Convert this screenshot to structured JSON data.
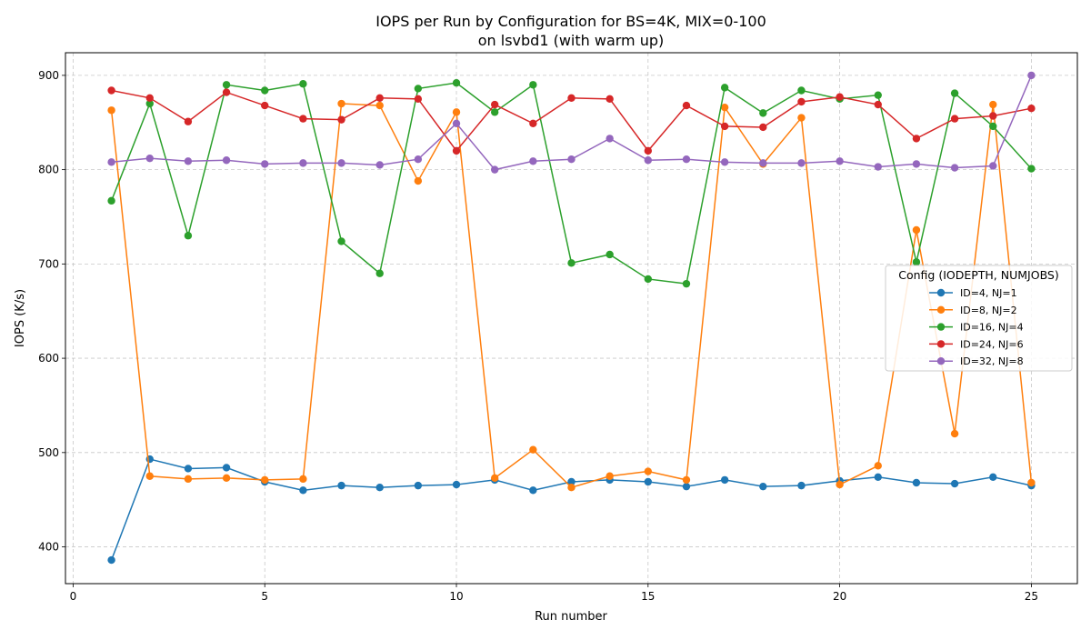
{
  "chart_data": {
    "type": "line",
    "title_line1": "IOPS per Run by Configuration for BS=4K, MIX=0-100",
    "title_line2": "on lsvbd1 (with warm up)",
    "xlabel": "Run number",
    "ylabel": "IOPS (K/s)",
    "xlim": [
      -0.2,
      26.2
    ],
    "ylim": [
      361,
      924
    ],
    "xticks": [
      0,
      5,
      10,
      15,
      20,
      25
    ],
    "yticks": [
      400,
      500,
      600,
      700,
      800,
      900
    ],
    "grid": true,
    "legend": {
      "title": "Config (IODEPTH, NUMJOBS)",
      "placement": "center-right"
    },
    "x": [
      1,
      2,
      3,
      4,
      5,
      6,
      7,
      8,
      9,
      10,
      11,
      12,
      13,
      14,
      15,
      16,
      17,
      18,
      19,
      20,
      21,
      22,
      23,
      24,
      25
    ],
    "series": [
      {
        "name": "ID=4, NJ=1",
        "color": "#1f77b4",
        "values": [
          386,
          493,
          483,
          484,
          469,
          460,
          465,
          463,
          465,
          466,
          471,
          460,
          469,
          471,
          469,
          464,
          471,
          464,
          465,
          470,
          474,
          468,
          467,
          474,
          465
        ]
      },
      {
        "name": "ID=8, NJ=2",
        "color": "#ff7f0e",
        "values": [
          863,
          475,
          472,
          473,
          471,
          472,
          870,
          868,
          788,
          861,
          473,
          503,
          463,
          475,
          480,
          471,
          866,
          806,
          855,
          466,
          486,
          736,
          520,
          869,
          468
        ]
      },
      {
        "name": "ID=16, NJ=4",
        "color": "#2ca02c",
        "values": [
          767,
          870,
          730,
          890,
          884,
          891,
          724,
          690,
          886,
          892,
          861,
          890,
          701,
          710,
          684,
          679,
          887,
          860,
          884,
          875,
          879,
          702,
          881,
          846,
          801
        ]
      },
      {
        "name": "ID=24, NJ=6",
        "color": "#d62728",
        "values": [
          884,
          876,
          851,
          882,
          868,
          854,
          853,
          876,
          875,
          820,
          869,
          849,
          876,
          875,
          820,
          868,
          846,
          845,
          872,
          877,
          869,
          833,
          854,
          857,
          865
        ]
      },
      {
        "name": "ID=32, NJ=8",
        "color": "#9467bd",
        "values": [
          808,
          812,
          809,
          810,
          806,
          807,
          807,
          805,
          811,
          849,
          800,
          809,
          811,
          833,
          810,
          811,
          808,
          807,
          807,
          809,
          803,
          806,
          802,
          804,
          900
        ]
      }
    ]
  }
}
